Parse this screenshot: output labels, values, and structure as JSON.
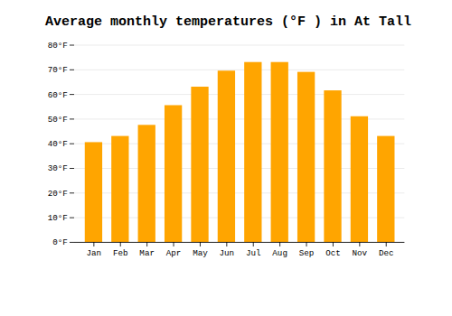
{
  "chart_data": {
    "type": "bar",
    "title": "Average monthly temperatures (°F ) in At Tall",
    "categories": [
      "Jan",
      "Feb",
      "Mar",
      "Apr",
      "May",
      "Jun",
      "Jul",
      "Aug",
      "Sep",
      "Oct",
      "Nov",
      "Dec"
    ],
    "values": [
      40.5,
      43.0,
      47.5,
      55.5,
      63.0,
      69.5,
      73.0,
      73.0,
      69.0,
      61.5,
      51.0,
      43.0
    ],
    "color": "#FFA500",
    "ylim": [
      0,
      80
    ],
    "yticks": [
      {
        "value": 0,
        "label": "0°F"
      },
      {
        "value": 10,
        "label": "10°F"
      },
      {
        "value": 20,
        "label": "20°F"
      },
      {
        "value": 30,
        "label": "30°F"
      },
      {
        "value": 40,
        "label": "40°F"
      },
      {
        "value": 50,
        "label": "50°F"
      },
      {
        "value": 60,
        "label": "60°F"
      },
      {
        "value": 70,
        "label": "70°F"
      },
      {
        "value": 80,
        "label": "80°F"
      }
    ],
    "grid": true
  }
}
